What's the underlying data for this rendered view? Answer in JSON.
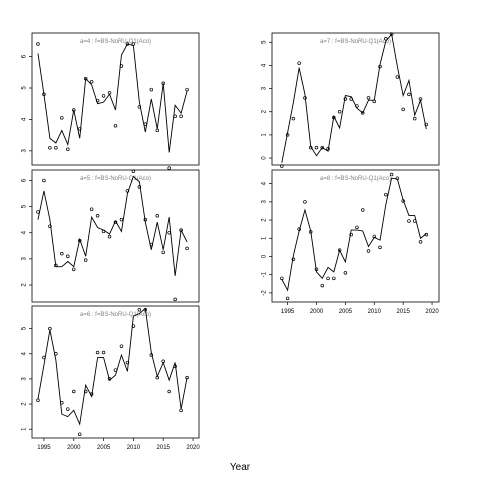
{
  "colors": {
    "line": "#000000",
    "title": "#7f7f7f",
    "frame": "#000000",
    "background": "#ffffff"
  },
  "xlabel": "Year",
  "chart_data": [
    {
      "type": "line",
      "title": "a=4  :  f=BS-NoRU-Q1(Aco)",
      "x": [
        1994,
        1995,
        1996,
        1997,
        1998,
        1999,
        2000,
        2001,
        2002,
        2003,
        2004,
        2005,
        2006,
        2007,
        2008,
        2009,
        2010,
        2011,
        2012,
        2013,
        2014,
        2015,
        2016,
        2017,
        2018,
        2019
      ],
      "observed": [
        6.4,
        4.8,
        3.1,
        3.1,
        4.05,
        3.05,
        4.3,
        3.7,
        5.3,
        5.2,
        4.6,
        4.75,
        4.85,
        3.8,
        5.7,
        6.4,
        6.4,
        4.4,
        3.85,
        4.95,
        3.65,
        5.15,
        2.45,
        4.1,
        4.1,
        4.95
      ],
      "fitted": [
        6.1,
        4.8,
        3.4,
        3.25,
        3.65,
        3.2,
        4.3,
        3.4,
        5.3,
        5.1,
        4.5,
        4.55,
        4.8,
        4.3,
        6.05,
        6.4,
        6.35,
        4.55,
        3.6,
        4.65,
        3.7,
        5.15,
        2.95,
        4.45,
        4.2,
        4.9
      ],
      "xlim": [
        1993,
        2021
      ],
      "ylim": [
        2.55,
        6.75
      ],
      "yticks": [
        3,
        4,
        5,
        6
      ]
    },
    {
      "type": "line",
      "title": "a=7  :  f=BS-NoRU-Q1(Aco)",
      "x": [
        1994,
        1995,
        1996,
        1997,
        1998,
        1999,
        2000,
        2001,
        2002,
        2003,
        2004,
        2005,
        2006,
        2007,
        2008,
        2009,
        2010,
        2011,
        2012,
        2013,
        2014,
        2015,
        2016,
        2017,
        2018,
        2019
      ],
      "observed": [
        -0.35,
        1.0,
        1.7,
        4.1,
        2.6,
        0.45,
        0.45,
        0.45,
        0.4,
        1.75,
        2.0,
        2.55,
        2.55,
        2.25,
        1.95,
        2.6,
        2.45,
        3.95,
        5.15,
        5.35,
        3.5,
        2.1,
        2.75,
        1.7,
        2.55,
        1.45
      ],
      "fitted": [
        -0.2,
        1.1,
        2.4,
        3.9,
        2.75,
        0.5,
        0.1,
        0.45,
        0.3,
        1.8,
        1.3,
        2.7,
        2.65,
        2.15,
        1.95,
        2.5,
        2.5,
        4.05,
        5.05,
        5.35,
        3.95,
        2.7,
        3.35,
        1.85,
        2.5,
        1.25
      ],
      "xlim": [
        1992.3,
        2021.2
      ],
      "ylim": [
        -0.3,
        5.4
      ],
      "yticks": [
        0,
        1,
        2,
        3,
        4,
        5
      ]
    },
    {
      "type": "line",
      "title": "a=5  :  f=BS-NoRU-Q1(Aco)",
      "x": [
        1994,
        1995,
        1996,
        1997,
        1998,
        1999,
        2000,
        2001,
        2002,
        2003,
        2004,
        2005,
        2006,
        2007,
        2008,
        2009,
        2010,
        2011,
        2012,
        2013,
        2014,
        2015,
        2016,
        2017,
        2018,
        2019
      ],
      "observed": [
        4.8,
        6.0,
        4.25,
        2.75,
        3.2,
        3.1,
        2.6,
        3.7,
        2.95,
        4.9,
        4.65,
        4.05,
        3.85,
        4.4,
        4.5,
        5.6,
        6.35,
        5.75,
        4.5,
        3.55,
        4.65,
        3.25,
        4.0,
        1.45,
        4.1,
        3.4
      ],
      "fitted": [
        4.5,
        5.6,
        4.5,
        2.7,
        2.7,
        2.9,
        2.7,
        3.75,
        3.1,
        4.6,
        4.2,
        4.1,
        3.95,
        4.45,
        4.05,
        5.5,
        6.15,
        5.95,
        4.4,
        3.35,
        4.4,
        3.35,
        4.6,
        2.35,
        4.1,
        3.65
      ],
      "xlim": [
        1993,
        2021
      ],
      "ylim": [
        1.35,
        6.4
      ],
      "yticks": [
        2,
        3,
        4,
        5,
        6
      ]
    },
    {
      "type": "line",
      "title": "a=8  :  f=BS-NoRU-Q1(Aco)",
      "x": [
        1994,
        1995,
        1996,
        1997,
        1998,
        1999,
        2000,
        2001,
        2002,
        2003,
        2004,
        2005,
        2006,
        2007,
        2008,
        2009,
        2010,
        2011,
        2012,
        2013,
        2014,
        2015,
        2016,
        2017,
        2018,
        2019
      ],
      "observed": [
        -1.2,
        -2.3,
        -0.15,
        1.5,
        3.0,
        1.35,
        -0.7,
        -1.6,
        -1.2,
        -1.2,
        0.35,
        -0.9,
        1.2,
        1.6,
        2.55,
        0.3,
        1.1,
        0.5,
        3.4,
        4.5,
        4.3,
        3.05,
        1.95,
        1.95,
        0.8,
        1.2
      ],
      "fitted": [
        -1.25,
        -1.85,
        0.05,
        1.4,
        2.55,
        1.4,
        -0.85,
        -1.2,
        -0.6,
        -0.85,
        0.35,
        -0.3,
        1.45,
        1.45,
        1.4,
        0.55,
        1.05,
        0.9,
        2.85,
        4.3,
        4.25,
        3.1,
        2.25,
        2.25,
        1.0,
        1.25
      ],
      "xlim": [
        1992.3,
        2021.2
      ],
      "ylim": [
        -2.5,
        4.75
      ],
      "yticks": [
        -2,
        -1,
        0,
        1,
        2,
        3,
        4
      ]
    },
    {
      "type": "line",
      "title": "a=6  :  f=BS-NoRU-Q1(Aco)",
      "x": [
        1994,
        1995,
        1996,
        1997,
        1998,
        1999,
        2000,
        2001,
        2002,
        2003,
        2004,
        2005,
        2006,
        2007,
        2008,
        2009,
        2010,
        2011,
        2012,
        2013,
        2014,
        2015,
        2016,
        2017,
        2018,
        2019
      ],
      "observed": [
        2.15,
        3.85,
        5.0,
        4.0,
        2.05,
        1.8,
        2.5,
        0.8,
        2.5,
        2.4,
        4.05,
        4.05,
        3.0,
        3.35,
        4.3,
        3.65,
        5.1,
        5.75,
        5.75,
        3.95,
        3.05,
        3.7,
        2.5,
        3.5,
        1.75,
        3.05
      ],
      "fitted": [
        2.2,
        3.55,
        4.95,
        3.75,
        1.6,
        1.5,
        1.75,
        1.2,
        2.75,
        2.3,
        3.85,
        3.85,
        2.95,
        3.15,
        3.95,
        3.3,
        5.5,
        5.6,
        5.8,
        4.05,
        3.1,
        3.65,
        2.95,
        3.65,
        1.8,
        3.05
      ],
      "xlim": [
        1993,
        2021
      ],
      "ylim": [
        0.65,
        5.9
      ],
      "yticks": [
        1,
        2,
        3,
        4,
        5
      ]
    }
  ],
  "xticks": [
    1995,
    2000,
    2005,
    2010,
    2015,
    2020
  ]
}
